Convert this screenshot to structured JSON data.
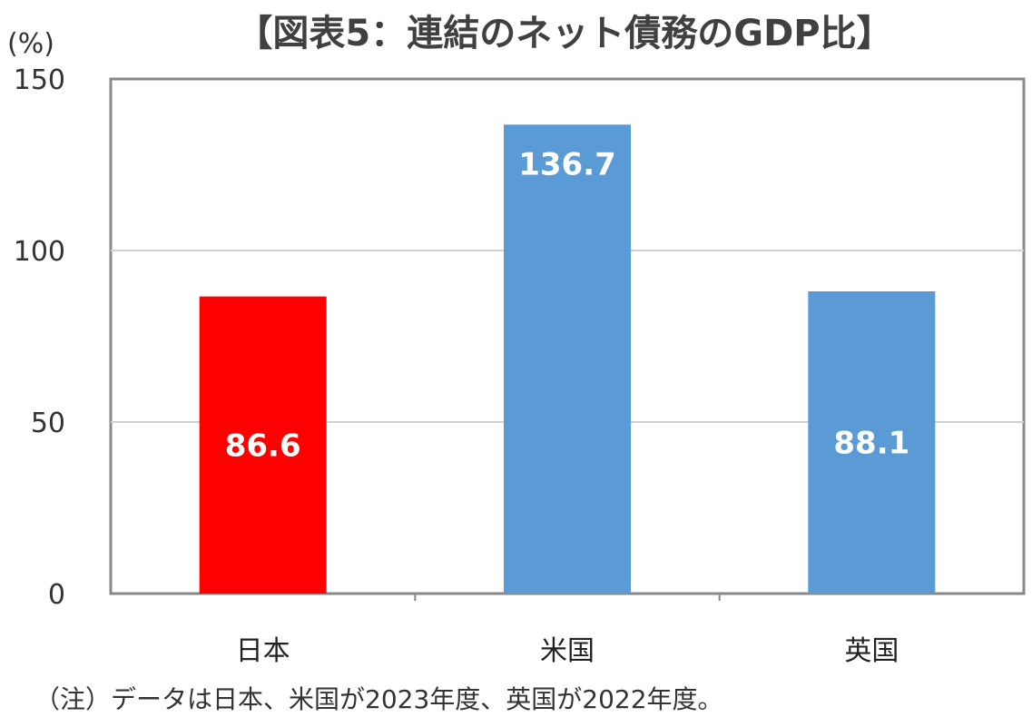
{
  "chart_data": {
    "type": "bar",
    "title": "【図表5：連結のネット債務のGDP比】",
    "ylabel": "(%)",
    "xlabel": "",
    "categories": [
      "日本",
      "米国",
      "英国"
    ],
    "values": [
      86.6,
      136.7,
      88.1
    ],
    "data_labels": [
      "86.6",
      "136.7",
      "88.1"
    ],
    "colors": [
      "#FF0000",
      "#5B9BD5",
      "#5B9BD5"
    ],
    "ylim": [
      0,
      150
    ],
    "yticks": [
      "0",
      "50",
      "100",
      "150"
    ],
    "grid": true,
    "legend": "none",
    "note": "（注）データは日本、米国が2023年度、英国が2022年度。"
  }
}
